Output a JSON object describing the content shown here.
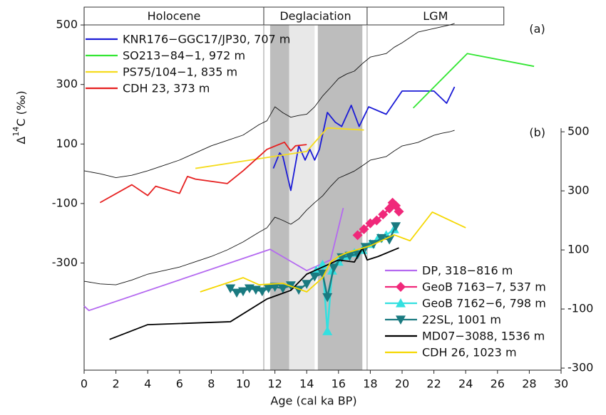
{
  "chart_data": {
    "type": "line",
    "xlabel": "Age (cal ka BP)",
    "ylabel": {
      "base": "Δ",
      "sup": "14",
      "rest": "C (‰)"
    },
    "xlim": [
      0,
      30
    ],
    "xticks": [
      0,
      2,
      4,
      6,
      8,
      10,
      12,
      14,
      16,
      18,
      20,
      22,
      24,
      26,
      28,
      30
    ],
    "ylim": [
      -660,
      560
    ],
    "yticks": [
      -300,
      -100,
      100,
      300,
      500
    ],
    "y2lim": [
      -307,
      922
    ],
    "y2ticks": [
      -300,
      -100,
      100,
      300,
      500
    ],
    "legend_position": "upper left",
    "legend2_position": "lower right",
    "periods": [
      {
        "label": "Holocene",
        "start": 0,
        "end": 11.3
      },
      {
        "label": "Deglaciation",
        "start": 11.3,
        "end": 17.8
      },
      {
        "label": "LGM",
        "start": 17.8,
        "end": 26.4
      }
    ],
    "shaded_intervals": [
      {
        "start": 11.7,
        "end": 12.9,
        "color": "#bdbdbd"
      },
      {
        "start": 12.9,
        "end": 14.5,
        "color": "#e8e8e8"
      },
      {
        "start": 14.7,
        "end": 17.5,
        "color": "#bdbdbd"
      }
    ],
    "annotations": [
      "(a)",
      "(b)"
    ],
    "series": [
      {
        "color": "#111111",
        "axis": "y",
        "x": [
          0,
          1,
          2,
          3,
          4,
          5,
          6,
          7,
          8,
          9,
          10,
          11,
          11.5,
          12,
          12.5,
          13,
          13.5,
          14,
          14.5,
          15,
          15.5,
          16,
          16.5,
          17,
          17.5,
          18,
          18.5,
          19,
          19.5,
          20,
          20.5,
          21,
          21.5,
          22,
          22.5,
          23,
          23.3
        ],
        "values": [
          10,
          0,
          -13,
          -5,
          10,
          28,
          46,
          70,
          94,
          112,
          130,
          165,
          178,
          225,
          205,
          190,
          196,
          200,
          225,
          261,
          290,
          320,
          335,
          345,
          370,
          392,
          398,
          404,
          425,
          440,
          458,
          476,
          482,
          488,
          494,
          500,
          505
        ]
      },
      {
        "color": "#111111",
        "axis": "y2",
        "x": [
          0,
          1,
          2,
          3,
          4,
          5,
          6,
          7,
          8,
          9,
          10,
          11,
          11.5,
          12,
          12.5,
          13,
          13.5,
          14,
          14.5,
          15,
          15.5,
          16,
          16.5,
          17,
          17.5,
          18,
          18.5,
          19,
          19.5,
          20,
          20.5,
          21,
          21.5,
          22,
          22.5,
          23,
          23.3
        ],
        "values": [
          -6,
          -15,
          -18,
          -2,
          18,
          30,
          42,
          60,
          78,
          100,
          127,
          160,
          175,
          211,
          200,
          187,
          205,
          235,
          260,
          283,
          315,
          343,
          355,
          367,
          385,
          404,
          410,
          416,
          435,
          452,
          458,
          464,
          476,
          488,
          495,
          500,
          505
        ]
      },
      {
        "name": "KNR176−GGC17/JP30, 707 m",
        "color": "#1a1ad6",
        "axis": "y",
        "x": [
          11.9,
          12.3,
          12.5,
          13,
          13.5,
          13.9,
          14.2,
          14.5,
          14.8,
          15.3,
          15.8,
          16.2,
          16.8,
          17.3,
          17.9,
          19,
          20,
          21,
          22,
          22.8,
          23.3
        ],
        "values": [
          18,
          70,
          58,
          -56,
          94,
          46,
          82,
          46,
          82,
          206,
          173,
          159,
          230,
          159,
          225,
          200,
          278,
          278,
          278,
          237,
          292
        ]
      },
      {
        "name": "SO213−84−1, 972 m",
        "color": "#33e633",
        "axis": "y",
        "x": [
          20.7,
          24.1,
          28.3
        ],
        "values": [
          221,
          404,
          361
        ]
      },
      {
        "name": "PS75/104−1, 835 m",
        "color": "#f5dc1e",
        "axis": "y",
        "x": [
          7.0,
          14.0,
          15.3,
          17.6
        ],
        "values": [
          18,
          75,
          154,
          147
        ]
      },
      {
        "name": "CDH 23, 373 m",
        "color": "#e62020",
        "axis": "y",
        "x": [
          1,
          3,
          4,
          4.5,
          6,
          6.5,
          7,
          9,
          10,
          11.5,
          12.6,
          13,
          13.3,
          14
        ],
        "values": [
          -97,
          -37,
          -73,
          -42,
          -66,
          -9,
          -18,
          -33,
          10,
          82,
          106,
          77,
          94,
          98
        ]
      },
      {
        "name": "DP, 318−816 m",
        "color": "#b469f0",
        "axis": "y2",
        "x": [
          0,
          0.3,
          11.7,
          14,
          15.5,
          16.3
        ],
        "values": [
          -90,
          -105,
          102,
          30,
          66,
          242
        ]
      },
      {
        "name": "GeoB 7163−7, 537 m",
        "color": "#f0287a",
        "axis": "y2",
        "marker": "diamond",
        "x": [
          17.2,
          17.6,
          18,
          18.4,
          18.8,
          19.2,
          19.4,
          19.6,
          19.8
        ],
        "values": [
          150,
          170,
          190,
          200,
          220,
          240,
          260,
          250,
          230
        ]
      },
      {
        "name": "GeoB 7162−6, 798 m",
        "color": "#33e0e0",
        "axis": "y2",
        "marker": "triangle-up",
        "x": [
          14.6,
          15,
          15.3,
          15.6,
          16,
          16.5,
          17,
          17.5,
          18,
          18.5,
          19,
          19.5
        ],
        "values": [
          30,
          50,
          -175,
          30,
          60,
          80,
          90,
          100,
          120,
          140,
          150,
          170
        ]
      },
      {
        "name": "22SL, 1001 m",
        "color": "#1a7a80",
        "axis": "y2",
        "marker": "triangle-down",
        "x": [
          9.2,
          9.6,
          10,
          10.4,
          10.8,
          11.2,
          11.6,
          12,
          12.5,
          13,
          13.5,
          14,
          14.5,
          15,
          15.3,
          15.7,
          16.2,
          16.7,
          17.2,
          17.7,
          18.2,
          18.7,
          19.2,
          19.6
        ],
        "values": [
          -30,
          -45,
          -40,
          -30,
          -35,
          -40,
          -30,
          -25,
          -30,
          -20,
          -35,
          -15,
          10,
          20,
          -60,
          40,
          75,
          80,
          85,
          110,
          120,
          140,
          135,
          180
        ]
      },
      {
        "name": "MD07−3088, 1536 m",
        "color": "#000000",
        "axis": "y2",
        "x": [
          1.6,
          4,
          9.2,
          11.5,
          13,
          14,
          15,
          16,
          17,
          17.5,
          17.8,
          18.5,
          19.8
        ],
        "values": [
          -203,
          -153,
          -143,
          -66,
          -37,
          18,
          42,
          66,
          59,
          107,
          66,
          78,
          107
        ]
      },
      {
        "name": "CDH 26, 1023 m",
        "color": "#f5d700",
        "axis": "y2",
        "x": [
          7.3,
          10,
          11,
          12.5,
          14,
          15,
          15.5,
          16,
          16.5,
          18,
          19.5,
          20.5,
          21.9,
          24
        ],
        "values": [
          -42,
          6,
          -18,
          -13,
          -42,
          6,
          59,
          78,
          90,
          114,
          151,
          131,
          228,
          175
        ]
      }
    ]
  }
}
